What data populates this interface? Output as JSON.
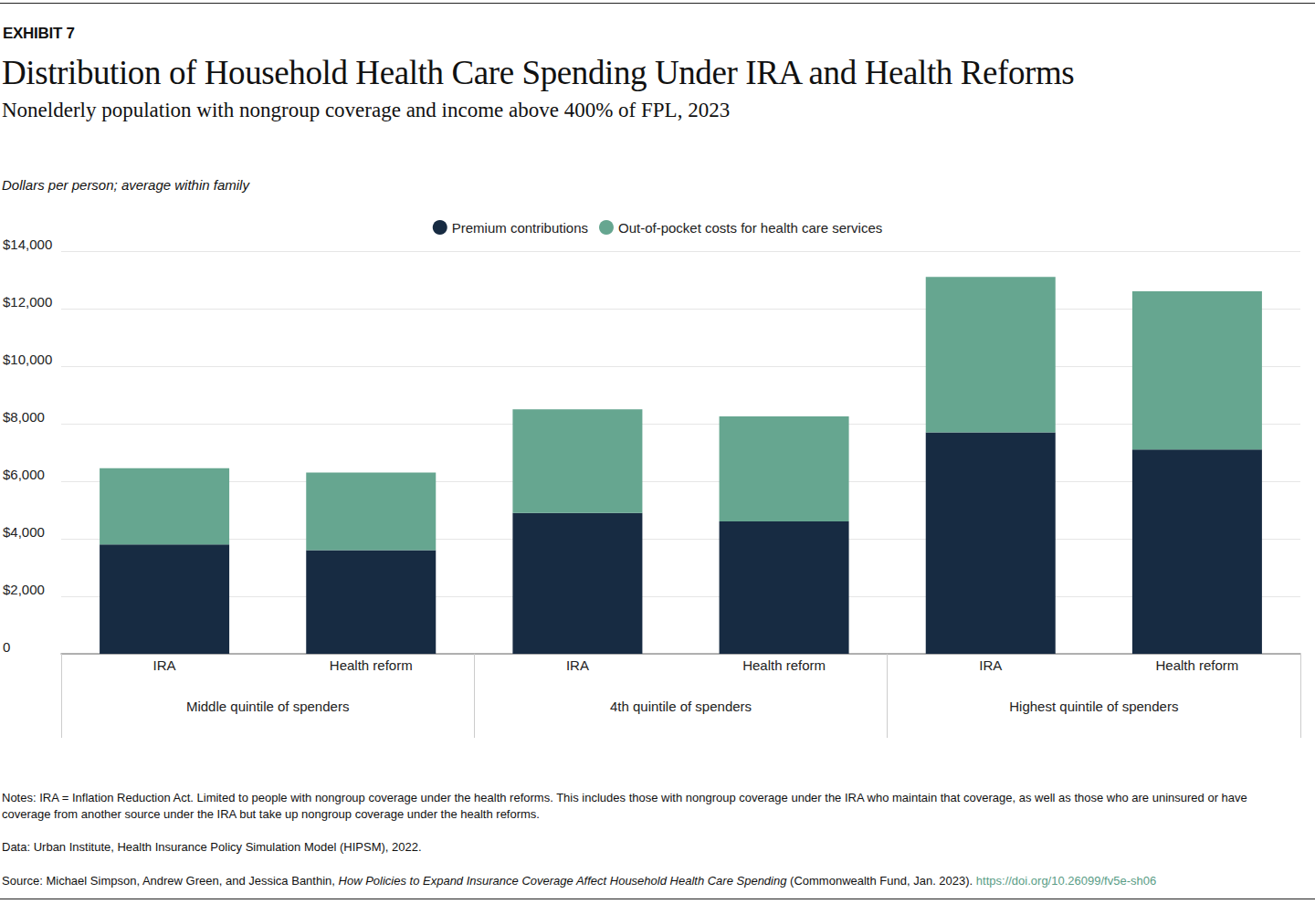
{
  "chart_data": {
    "type": "bar",
    "exhibit": "EXHIBIT 7",
    "title": "Distribution of Household Health Care Spending Under IRA and Health Reforms",
    "subtitle": "Nonelderly population with nongroup coverage and income above 400% of FPL, 2023",
    "y_label": "Dollars per person; average within family",
    "categories": [
      "IRA",
      "Health reform",
      "IRA",
      "Health reform",
      "IRA",
      "Health reform"
    ],
    "category_groups": [
      "Middle quintile of spenders",
      "4th quintile of spenders",
      "Highest quintile of spenders"
    ],
    "series": [
      {
        "name": "Premium contributions",
        "color": "#172b42",
        "values": [
          3800,
          3600,
          4900,
          4600,
          7700,
          7100
        ]
      },
      {
        "name": "Out-of-pocket costs for health care services",
        "color": "#66a690",
        "values": [
          2650,
          2700,
          3600,
          3650,
          5400,
          5500
        ]
      }
    ],
    "stacked": true,
    "ylim": [
      0,
      14000
    ],
    "yticks": [
      0,
      {
        "value": 2000,
        "label": "$2,000"
      },
      {
        "value": 4000,
        "label": "$4,000"
      },
      {
        "value": 6000,
        "label": "$6,000"
      },
      {
        "value": 8000,
        "label": "$8,000"
      },
      {
        "value": 10000,
        "label": "$10,000"
      },
      {
        "value": 12000,
        "label": "$12,000"
      },
      {
        "value": 14000,
        "label": "$14,000"
      }
    ],
    "grid": true,
    "legend": "top",
    "notes": "Notes: IRA = Inflation Reduction Act. Limited to people with nongroup coverage under the health reforms. This includes those with nongroup coverage under the IRA who maintain that coverage, as well as those who are uninsured or have coverage from another source under the IRA but take up nongroup coverage under the health reforms.",
    "data_source": "Data: Urban Institute, Health Insurance Policy Simulation Model (HIPSM), 2022.",
    "source": {
      "text": "Source: Michael Simpson, Andrew Green, and Jessica Banthin, ",
      "title": "How Policies to Expand Insurance Coverage Affect Household Health Care Spending",
      "publisher": " (Commonwealth Fund, Jan. 2023). ",
      "url": "https://doi.org/10.26099/fv5e-sh06"
    }
  }
}
